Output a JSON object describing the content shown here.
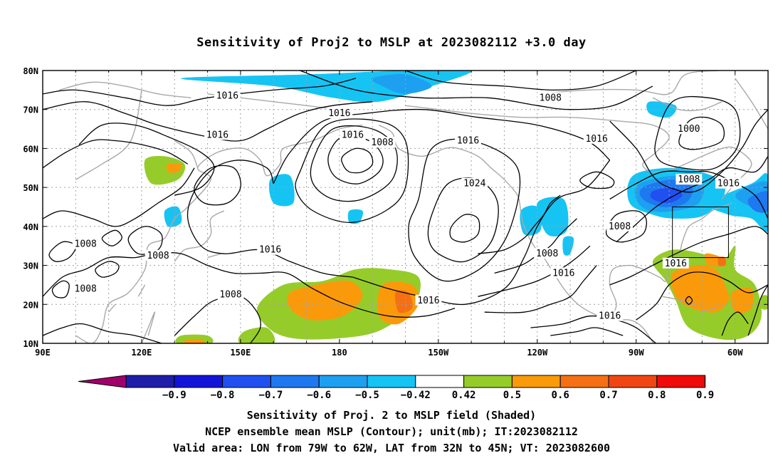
{
  "title": "Sensitivity of Proj2 to MSLP at 2023082112 +3.0 day",
  "map": {
    "lon_labels": [
      "90E",
      "120E",
      "150E",
      "180",
      "150W",
      "120W",
      "90W",
      "60W"
    ],
    "lat_labels": [
      "80N",
      "70N",
      "60N",
      "50N",
      "40N",
      "30N",
      "20N",
      "10N"
    ],
    "lon_range_deg_east": [
      90,
      310
    ],
    "lat_range_deg_north": [
      10,
      80
    ],
    "contour_labels": [
      {
        "text": "1016",
        "lon": 146,
        "lat": 73.5
      },
      {
        "text": "1008",
        "lon": 244,
        "lat": 73
      },
      {
        "text": "1016",
        "lon": 180,
        "lat": 69
      },
      {
        "text": "1016",
        "lon": 143,
        "lat": 63.5
      },
      {
        "text": "1016",
        "lon": 184,
        "lat": 63.5
      },
      {
        "text": "1008",
        "lon": 193,
        "lat": 61.5
      },
      {
        "text": "1016",
        "lon": 219,
        "lat": 62
      },
      {
        "text": "1016",
        "lon": 258,
        "lat": 62.5
      },
      {
        "text": "1000",
        "lon": 286,
        "lat": 65
      },
      {
        "text": "1008",
        "lon": 286,
        "lat": 52
      },
      {
        "text": "1016",
        "lon": 298,
        "lat": 51
      },
      {
        "text": "1024",
        "lon": 221,
        "lat": 51
      },
      {
        "text": "1008",
        "lon": 265,
        "lat": 40
      },
      {
        "text": "1008",
        "lon": 103,
        "lat": 35.5
      },
      {
        "text": "1008",
        "lon": 125,
        "lat": 32.5
      },
      {
        "text": "1016",
        "lon": 159,
        "lat": 34
      },
      {
        "text": "1008",
        "lon": 103,
        "lat": 24
      },
      {
        "text": "1008",
        "lon": 147,
        "lat": 22.5
      },
      {
        "text": "1016",
        "lon": 207,
        "lat": 21
      },
      {
        "text": "1008",
        "lon": 243,
        "lat": 33
      },
      {
        "text": "1016",
        "lon": 248,
        "lat": 28
      },
      {
        "text": "1016",
        "lon": 282,
        "lat": 30.5
      },
      {
        "text": "1016",
        "lon": 262,
        "lat": 17
      }
    ],
    "valid_area_box": {
      "lon": [
        281,
        298
      ],
      "lat": [
        32,
        45
      ]
    }
  },
  "colorbar": {
    "labels": [
      "-0.9",
      "-0.8",
      "-0.7",
      "-0.6",
      "-0.5",
      "-0.42",
      "0.42",
      "0.5",
      "0.6",
      "0.7",
      "0.8",
      "0.9"
    ],
    "colors": [
      "#a0006b",
      "#1e1ea8",
      "#1414d8",
      "#2050f0",
      "#1e78f0",
      "#1ea0f0",
      "#16c4f4",
      "#ffffff",
      "#96cc2a",
      "#fa9a0a",
      "#f57014",
      "#f04614",
      "#f00a0a",
      "#f5a0c8"
    ]
  },
  "captions": {
    "line1": "Sensitivity of Proj. 2 to MSLP field (Shaded)",
    "line2": "NCEP ensemble mean MSLP (Contour); unit(mb); IT:2023082112",
    "line3": "Valid area: LON from 79W to 62W, LAT from 32N to 45N; VT: 2023082600"
  }
}
